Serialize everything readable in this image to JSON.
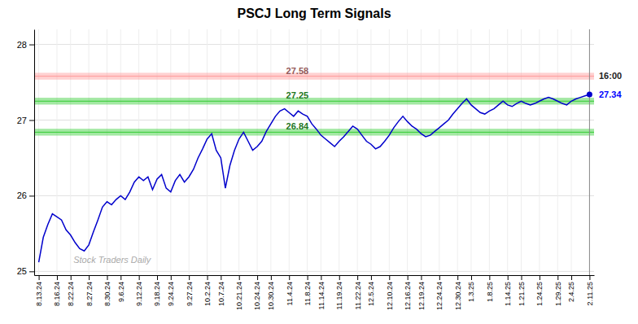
{
  "chart_data": {
    "type": "line",
    "title": "PSCJ Long Term Signals",
    "categories": [
      "8.13.24",
      null,
      null,
      null,
      "8.16.24",
      null,
      null,
      "8.22.24",
      null,
      null,
      null,
      "8.27.24",
      null,
      null,
      null,
      "8.30.24",
      null,
      null,
      "9.6.24",
      null,
      null,
      null,
      "9.12.24",
      null,
      null,
      null,
      "9.18.24",
      null,
      null,
      "9.24.24",
      null,
      null,
      null,
      "9.27.24",
      null,
      null,
      null,
      "10.2.24",
      null,
      null,
      "10.7.24",
      null,
      null,
      null,
      "10.21.24",
      null,
      null,
      null,
      "10.24.24",
      null,
      null,
      "10.30.24",
      null,
      null,
      null,
      "11.4.24",
      null,
      null,
      null,
      "11.8.24",
      null,
      null,
      "11.14.24",
      null,
      null,
      null,
      "11.19.24",
      null,
      null,
      null,
      "11.22.24",
      null,
      null,
      "12.5.24",
      null,
      null,
      null,
      "12.10.24",
      null,
      null,
      null,
      "12.16.24",
      null,
      null,
      "12.19.24",
      null,
      null,
      null,
      "12.24.24",
      null,
      null,
      null,
      "12.30.24",
      null,
      null,
      "1.3.25",
      null,
      null,
      null,
      "1.8.25",
      null,
      null,
      null,
      "1.14.25",
      null,
      null,
      "1.21.25",
      null,
      null,
      null,
      "1.24.25",
      null,
      null,
      null,
      "1.29.25",
      null,
      null,
      "2.4.25",
      null,
      null,
      null,
      "2.11.25"
    ],
    "values": [
      25.12,
      25.45,
      25.62,
      25.76,
      25.72,
      25.68,
      25.55,
      25.48,
      25.38,
      25.3,
      25.27,
      25.35,
      25.52,
      25.68,
      25.85,
      25.92,
      25.88,
      25.95,
      26.0,
      25.95,
      26.05,
      26.18,
      26.25,
      26.2,
      26.25,
      26.08,
      26.22,
      26.28,
      26.1,
      26.05,
      26.2,
      26.28,
      26.18,
      26.25,
      26.35,
      26.5,
      26.62,
      26.75,
      26.82,
      26.6,
      26.5,
      26.1,
      26.4,
      26.6,
      26.75,
      26.84,
      26.72,
      26.6,
      26.65,
      26.72,
      26.85,
      26.95,
      27.05,
      27.12,
      27.15,
      27.1,
      27.05,
      27.12,
      27.08,
      27.05,
      26.95,
      26.88,
      26.8,
      26.75,
      26.7,
      26.65,
      26.72,
      26.78,
      26.85,
      26.92,
      26.88,
      26.8,
      26.72,
      26.68,
      26.62,
      26.65,
      26.72,
      26.8,
      26.9,
      26.98,
      27.05,
      26.98,
      26.92,
      26.88,
      26.82,
      26.78,
      26.8,
      26.85,
      26.9,
      26.95,
      27.0,
      27.08,
      27.15,
      27.22,
      27.28,
      27.2,
      27.15,
      27.1,
      27.08,
      27.12,
      27.15,
      27.2,
      27.25,
      27.2,
      27.18,
      27.22,
      27.25,
      27.22,
      27.2,
      27.22,
      27.25,
      27.28,
      27.3,
      27.28,
      27.25,
      27.22,
      27.2,
      27.25,
      27.28,
      27.3,
      27.32,
      27.34
    ],
    "color": "#0000cc",
    "ylim": [
      24.95,
      28.2
    ],
    "yticks": [
      25,
      26,
      27,
      28
    ],
    "grid": true,
    "reference_lines": [
      {
        "value": 27.58,
        "label": "27.58",
        "band": [
          27.535,
          27.625
        ],
        "color": "#ff9999"
      },
      {
        "value": 27.25,
        "label": "27.25",
        "band": [
          27.205,
          27.295
        ],
        "color": "#33cc33"
      },
      {
        "value": 26.84,
        "label": "26.84",
        "band": [
          26.795,
          26.885
        ],
        "color": "#33cc33"
      }
    ],
    "annotations": [
      {
        "text": "16:00",
        "y": 27.58
      },
      {
        "text": "27.34",
        "y": 27.34,
        "color": "#0000ff"
      },
      {
        "text": "Stock Traders Daily"
      }
    ]
  }
}
